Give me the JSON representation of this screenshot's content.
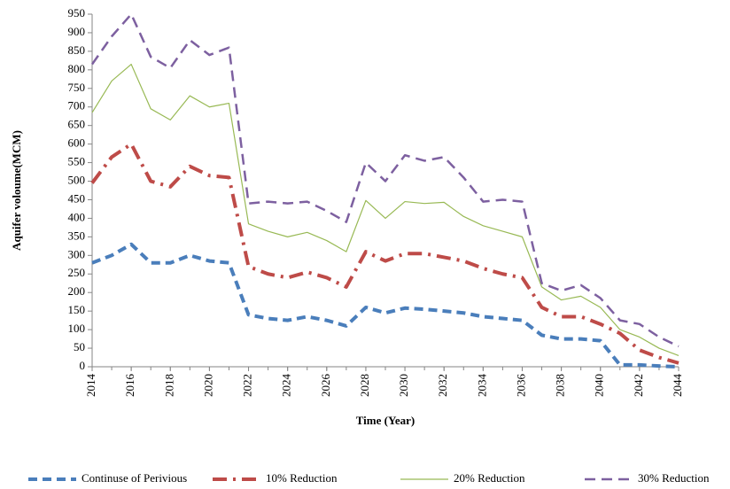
{
  "chart_data": {
    "type": "line",
    "x_label": "Time (Year)",
    "y_label": "Aquifer voloume(MCM)",
    "x": [
      2014,
      2015,
      2016,
      2017,
      2018,
      2019,
      2020,
      2021,
      2022,
      2023,
      2024,
      2025,
      2026,
      2027,
      2028,
      2029,
      2030,
      2031,
      2032,
      2033,
      2034,
      2035,
      2036,
      2037,
      2038,
      2039,
      2040,
      2041,
      2042,
      2043,
      2044
    ],
    "xlim": [
      2014,
      2044
    ],
    "xticks": [
      2014,
      2016,
      2018,
      2020,
      2022,
      2024,
      2026,
      2028,
      2030,
      2032,
      2034,
      2036,
      2038,
      2040,
      2042,
      2044
    ],
    "ylim": [
      0,
      950
    ],
    "yticks": [
      0,
      50,
      100,
      150,
      200,
      250,
      300,
      350,
      400,
      450,
      500,
      550,
      600,
      650,
      700,
      750,
      800,
      850,
      900,
      950
    ],
    "grid": false,
    "legend": "bottom",
    "series": [
      {
        "name": "Continuse of Perivious",
        "color": "#4a7ebb",
        "values": [
          280,
          300,
          330,
          280,
          280,
          300,
          285,
          280,
          140,
          130,
          125,
          135,
          125,
          110,
          160,
          145,
          158,
          155,
          150,
          145,
          135,
          130,
          125,
          85,
          75,
          75,
          70,
          5,
          5,
          2,
          0
        ]
      },
      {
        "name": "10% Reduction",
        "color": "#be4b48",
        "values": [
          495,
          565,
          600,
          500,
          485,
          540,
          515,
          510,
          270,
          250,
          240,
          255,
          240,
          215,
          310,
          285,
          305,
          305,
          295,
          285,
          265,
          250,
          240,
          160,
          135,
          135,
          115,
          90,
          45,
          25,
          10
        ]
      },
      {
        "name": "20% Reduction",
        "color": "#98b954",
        "values": [
          685,
          770,
          815,
          695,
          665,
          730,
          700,
          710,
          385,
          365,
          350,
          362,
          340,
          310,
          448,
          400,
          445,
          440,
          443,
          405,
          380,
          365,
          350,
          215,
          180,
          190,
          160,
          100,
          80,
          50,
          30
        ]
      },
      {
        "name": "30% Reduction",
        "color": "#7d60a0",
        "values": [
          815,
          890,
          950,
          835,
          805,
          880,
          840,
          860,
          440,
          445,
          440,
          445,
          420,
          390,
          550,
          500,
          570,
          555,
          565,
          510,
          445,
          450,
          445,
          225,
          205,
          220,
          185,
          125,
          115,
          80,
          55
        ]
      }
    ]
  }
}
